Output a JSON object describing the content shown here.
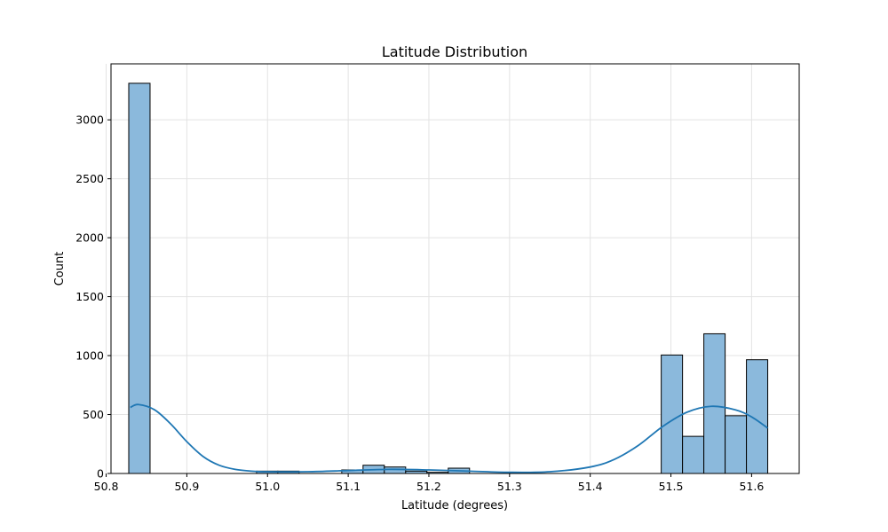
{
  "chart_data": {
    "type": "bar",
    "title": "Latitude Distribution",
    "xlabel": "Latitude (degrees)",
    "ylabel": "Count",
    "xlim": [
      50.806,
      51.659
    ],
    "ylim": [
      0,
      3475
    ],
    "grid": true,
    "bin_edges": [
      50.828,
      50.8544,
      50.8808,
      50.9072,
      50.9336,
      50.96,
      50.9864,
      51.0128,
      51.0392,
      51.0656,
      51.092,
      51.1184,
      51.1448,
      51.1712,
      51.1976,
      51.224,
      51.2504,
      51.2768,
      51.3032,
      51.3296,
      51.356,
      51.3824,
      51.4088,
      51.4352,
      51.4616,
      51.488,
      51.5144,
      51.5408,
      51.5672,
      51.5936,
      51.62
    ],
    "counts": [
      3310,
      0,
      0,
      0,
      0,
      0,
      20,
      20,
      0,
      0,
      30,
      70,
      55,
      20,
      10,
      45,
      0,
      0,
      0,
      0,
      0,
      0,
      0,
      0,
      0,
      1005,
      315,
      1185,
      490,
      965
    ],
    "kde": {
      "x": [
        50.83,
        50.84,
        50.86,
        50.88,
        50.9,
        50.92,
        50.94,
        50.96,
        50.98,
        51.0,
        51.05,
        51.1,
        51.15,
        51.2,
        51.25,
        51.3,
        51.35,
        51.4,
        51.43,
        51.46,
        51.49,
        51.52,
        51.55,
        51.58,
        51.6,
        51.62
      ],
      "y": [
        560,
        585,
        540,
        420,
        270,
        145,
        70,
        35,
        20,
        15,
        15,
        25,
        35,
        30,
        20,
        10,
        15,
        55,
        120,
        240,
        400,
        520,
        570,
        540,
        480,
        385
      ]
    },
    "x_ticks": [
      "50.8",
      "50.9",
      "51.0",
      "51.1",
      "51.2",
      "51.3",
      "51.4",
      "51.5",
      "51.6"
    ],
    "y_ticks": [
      "0",
      "500",
      "1000",
      "1500",
      "2000",
      "2500",
      "3000"
    ],
    "colors": {
      "bar_fill": "#8bb9dc",
      "bar_edge": "#000000",
      "kde_line": "#1f77b4",
      "grid": "#e3e3e3",
      "axes": "#000000"
    }
  }
}
